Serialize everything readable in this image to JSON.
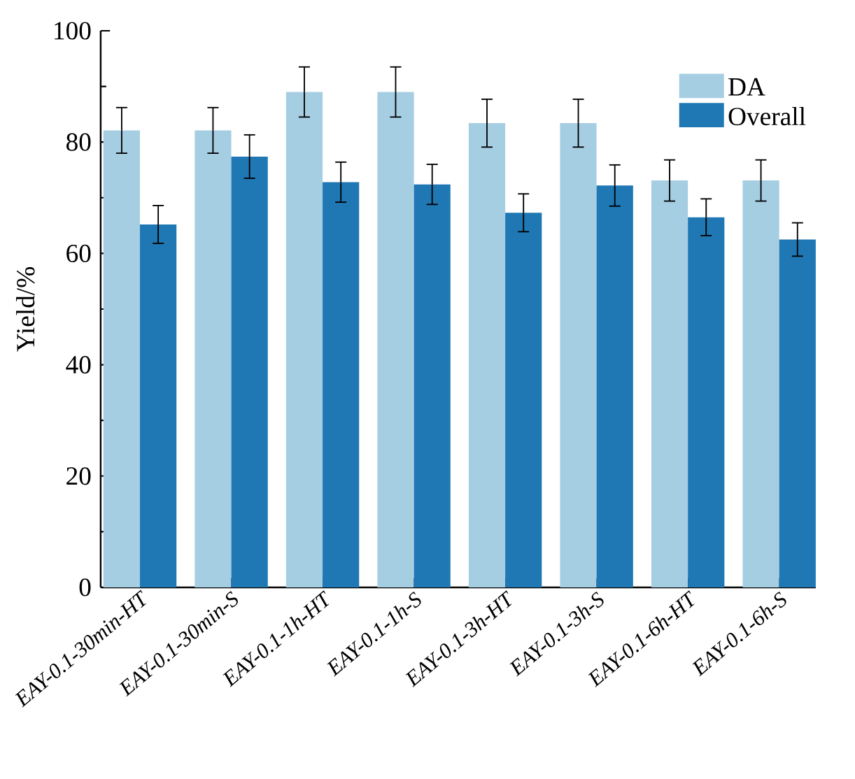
{
  "chart_data": {
    "type": "bar",
    "ylabel": "Yield/%",
    "categories": [
      "EAY-0.1-30min-HT",
      "EAY-0.1-30min-S",
      "EAY-0.1-1h-HT",
      "EAY-0.1-1h-S",
      "EAY-0.1-3h-HT",
      "EAY-0.1-3h-S",
      "EAY-0.1-6h-HT",
      "EAY-0.1-6h-S"
    ],
    "series": [
      {
        "name": "DA",
        "color": "#a6cee3",
        "values": [
          82.1,
          82.1,
          89.0,
          89.0,
          83.4,
          83.4,
          73.1,
          73.1
        ],
        "errors": [
          4.1,
          4.1,
          4.5,
          4.5,
          4.3,
          4.3,
          3.7,
          3.7
        ]
      },
      {
        "name": "Overall",
        "color": "#1f78b4",
        "values": [
          65.2,
          77.4,
          72.8,
          72.4,
          67.3,
          72.2,
          66.5,
          62.5
        ],
        "errors": [
          3.4,
          3.9,
          3.6,
          3.6,
          3.4,
          3.7,
          3.3,
          3.0
        ]
      }
    ],
    "ylim": [
      0,
      100
    ],
    "yticks": [
      0,
      20,
      40,
      60,
      80,
      100
    ],
    "legend": "top right"
  }
}
